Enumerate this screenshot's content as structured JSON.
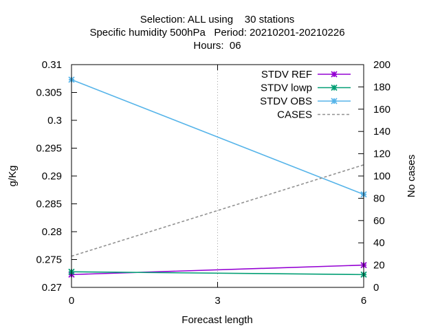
{
  "chart_data": {
    "type": "line",
    "title_lines": [
      "Selection: ALL using    30 stations",
      "Specific humidity 500hPa   Period: 20210201-20210226",
      "Hours:  06"
    ],
    "xlabel": "Forecast length",
    "ylabel": "g/Kg",
    "y2label": "No cases",
    "x": [
      0,
      3,
      6
    ],
    "x_ticks": [
      0,
      3,
      6
    ],
    "xlim": [
      0,
      6
    ],
    "ylim": [
      0.27,
      0.31
    ],
    "y_ticks": [
      "0.27",
      "0.275",
      "0.28",
      "0.285",
      "0.29",
      "0.295",
      "0.3",
      "0.305",
      "0.31"
    ],
    "y2lim": [
      0,
      200
    ],
    "y2_ticks": [
      0,
      20,
      40,
      60,
      80,
      100,
      120,
      140,
      160,
      180,
      200
    ],
    "grid": "x-major-only",
    "legend_position": "top-right",
    "series": [
      {
        "name": "STDV REF",
        "axis": "y",
        "color": "#9400d3",
        "marker": "x-star",
        "points": [
          [
            0,
            0.2723
          ],
          [
            6,
            0.274
          ]
        ]
      },
      {
        "name": "STDV lowp",
        "axis": "y",
        "color": "#009e73",
        "marker": "x-star",
        "points": [
          [
            0,
            0.2728
          ],
          [
            6,
            0.2723
          ]
        ]
      },
      {
        "name": "STDV OBS",
        "axis": "y",
        "color": "#56b4e9",
        "marker": "x-star",
        "points": [
          [
            0,
            0.3073
          ],
          [
            6,
            0.2867
          ]
        ]
      },
      {
        "name": "CASES",
        "axis": "y2",
        "color": "#909090",
        "dashed": true,
        "points": [
          [
            0,
            28
          ],
          [
            6,
            110
          ]
        ]
      }
    ]
  }
}
